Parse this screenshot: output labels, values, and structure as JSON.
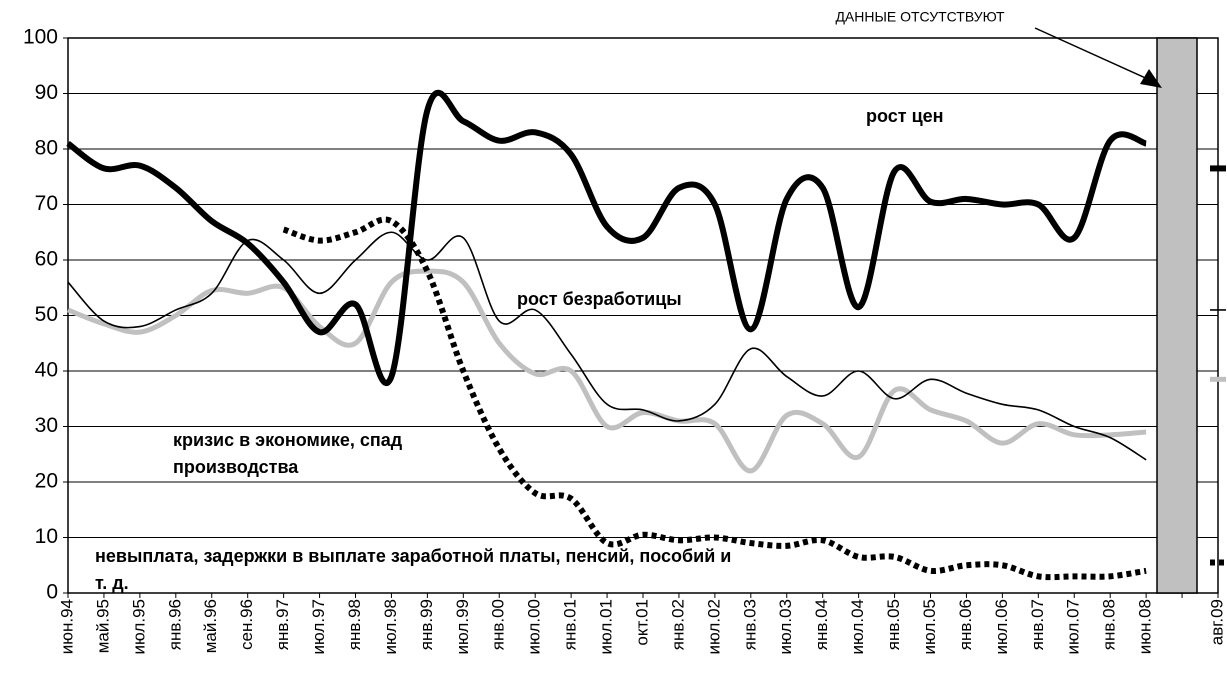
{
  "chart_data": {
    "type": "line",
    "categories": [
      "июн.94",
      "май.95",
      "июл.95",
      "янв.96",
      "май.96",
      "сен.96",
      "янв.97",
      "июл.97",
      "янв.98",
      "июл.98",
      "янв.99",
      "июл.99",
      "янв.00",
      "июл.00",
      "янв.01",
      "июл.01",
      "окт.01",
      "янв.02",
      "июл.02",
      "янв.03",
      "июл.03",
      "янв.04",
      "июл.04",
      "янв.05",
      "июл.05",
      "янв.06",
      "июл.06",
      "янв.07",
      "июл.07",
      "янв.08",
      "июн.08",
      null,
      "авг.09"
    ],
    "series": [
      {
        "name": "рост цен",
        "color": "#000000",
        "values": [
          81,
          76.5,
          77,
          73,
          67,
          63,
          56,
          47,
          52,
          39,
          87,
          85,
          81.5,
          83,
          79,
          66,
          64,
          73,
          70,
          47.5,
          71,
          73,
          51.5,
          76,
          70.5,
          71,
          70,
          70,
          64,
          81.5,
          81,
          null,
          76.5
        ]
      },
      {
        "name": "рост безработицы",
        "color": "#000000",
        "values": [
          56,
          49,
          48,
          51,
          54,
          63.5,
          60,
          54,
          60,
          65,
          60,
          64,
          49,
          51,
          43,
          34,
          33,
          31,
          34,
          44,
          39,
          35.5,
          40,
          35,
          38.5,
          36,
          34,
          33,
          30,
          28,
          24,
          null,
          51
        ]
      },
      {
        "name": "кризис в экономике, спад производства",
        "color": "#c0c0c0",
        "values": [
          51,
          48.5,
          47,
          50,
          54.5,
          54,
          55,
          48,
          45,
          56,
          58,
          56,
          45,
          39.5,
          40,
          30,
          32.5,
          31,
          30.5,
          22,
          32,
          30.5,
          24.5,
          36.5,
          33,
          31,
          27,
          30.5,
          28.5,
          28.5,
          29,
          null,
          38.5
        ]
      },
      {
        "name": "невыплата,  задержки в выплате заработной платы, пенсий, пособий и т. д.",
        "color": "#000000",
        "values": [
          null,
          null,
          null,
          null,
          null,
          null,
          65.5,
          63.5,
          65,
          67,
          58,
          40,
          26,
          18,
          17,
          9,
          10.5,
          9.5,
          10,
          9,
          8.5,
          9.5,
          6.5,
          6.5,
          4,
          5,
          5,
          3,
          3,
          3,
          4,
          null,
          5.5
        ]
      }
    ],
    "annotation": "ДАННЫЕ ОТСУТСТВУЮТ",
    "ylim": [
      0,
      100
    ],
    "yticks": [
      0,
      10,
      20,
      30,
      40,
      50,
      60,
      70,
      80,
      90,
      100
    ],
    "grid": true
  }
}
